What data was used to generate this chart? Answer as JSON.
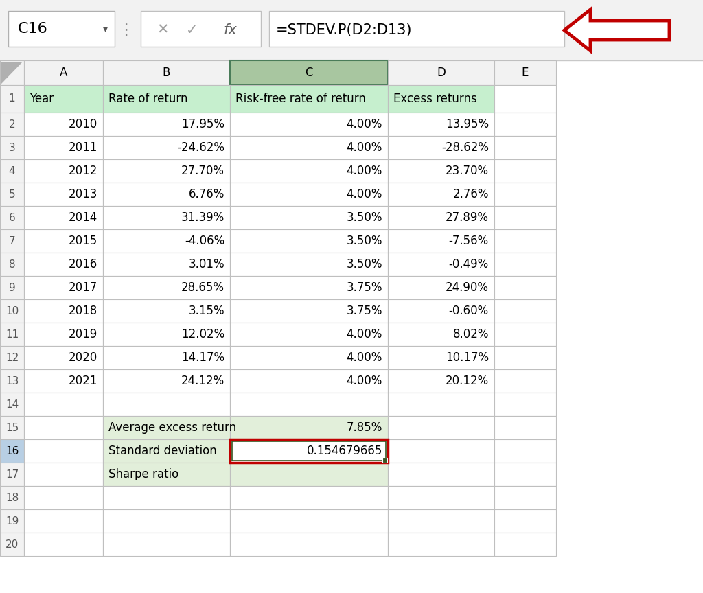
{
  "formula_bar_cell": "C16",
  "formula_bar_formula": "=STDEV.P(D2:D13)",
  "col_headers": [
    "A",
    "B",
    "C",
    "D",
    "E"
  ],
  "header_row": [
    "Year",
    "Rate of return",
    "Risk-free rate of return",
    "Excess returns",
    ""
  ],
  "data_rows": [
    [
      "2010",
      "17.95%",
      "4.00%",
      "13.95%"
    ],
    [
      "2011",
      "-24.62%",
      "4.00%",
      "-28.62%"
    ],
    [
      "2012",
      "27.70%",
      "4.00%",
      "23.70%"
    ],
    [
      "2013",
      "6.76%",
      "4.00%",
      "2.76%"
    ],
    [
      "2014",
      "31.39%",
      "3.50%",
      "27.89%"
    ],
    [
      "2015",
      "-4.06%",
      "3.50%",
      "-7.56%"
    ],
    [
      "2016",
      "3.01%",
      "3.50%",
      "-0.49%"
    ],
    [
      "2017",
      "28.65%",
      "3.75%",
      "24.90%"
    ],
    [
      "2018",
      "3.15%",
      "3.75%",
      "-0.60%"
    ],
    [
      "2019",
      "12.02%",
      "4.00%",
      "8.02%"
    ],
    [
      "2020",
      "14.17%",
      "4.00%",
      "10.17%"
    ],
    [
      "2021",
      "24.12%",
      "4.00%",
      "20.12%"
    ]
  ],
  "green_header_fill": "#c6efce",
  "green_cell_fill": "#e2efda",
  "white_fill": "#ffffff",
  "grid_color": "#bfbfbf",
  "toolbar_bg": "#f2f2f2",
  "arrow_color": "#c00000",
  "red_border_color": "#c00000",
  "dark_green_border": "#375623",
  "col_C_header_fill": "#a8c6a0",
  "col_C_body_fill": "#ddeedd",
  "row16_num_fill": "#b8cfe4",
  "total_rows": 20
}
